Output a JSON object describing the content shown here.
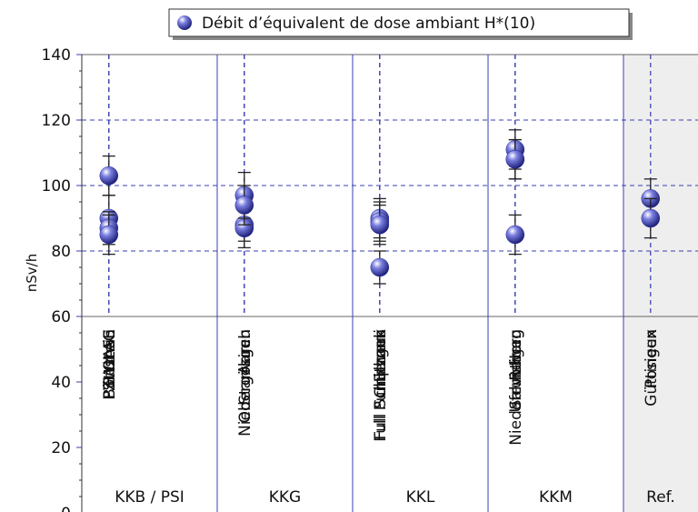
{
  "chart_data": {
    "type": "dot",
    "legend": "Débit d’équivalent de dose ambiant H*(10)",
    "ylabel": "nSv/h",
    "color": "#2b2f9e",
    "ylim": [
      0,
      140
    ],
    "yticks": [
      0,
      20,
      40,
      60,
      80,
      100,
      120,
      140
    ],
    "grid": true,
    "groups": [
      {
        "name": "KKB / PSI",
        "categories": [
          "Beznau",
          "Böttstein",
          "PSI OASE",
          "ZWILAG"
        ],
        "values": [
          90,
          103,
          87,
          85
        ],
        "errors": [
          7,
          6,
          5,
          6
        ]
      },
      {
        "name": "KKG",
        "categories": [
          "Aarau",
          "Niedergösgen",
          "Obergösgen",
          "Starrkirch"
        ],
        "values": [
          88,
          87,
          97,
          94
        ],
        "errors": [
          5,
          6,
          7,
          6
        ]
      },
      {
        "name": "KKL",
        "categories": [
          "Etzgen",
          "Full Schulhaus",
          "Full Pumpwerk",
          "Chlemmi"
        ],
        "values": [
          90,
          89,
          75,
          88
        ],
        "errors": [
          6,
          6,
          5,
          6
        ]
      },
      {
        "name": "KKM",
        "categories": [
          "Salvisberg",
          "Niederruntigen",
          "Rewag",
          "Ufem Horn"
        ],
        "values": [
          111,
          108,
          85,
          108
        ],
        "errors": [
          6,
          6,
          6,
          6
        ]
      },
      {
        "name": "Ref.",
        "categories": [
          "Posieux",
          "Güttingen"
        ],
        "values": [
          96,
          90
        ],
        "errors": [
          6,
          6
        ],
        "shaded": true
      }
    ]
  }
}
